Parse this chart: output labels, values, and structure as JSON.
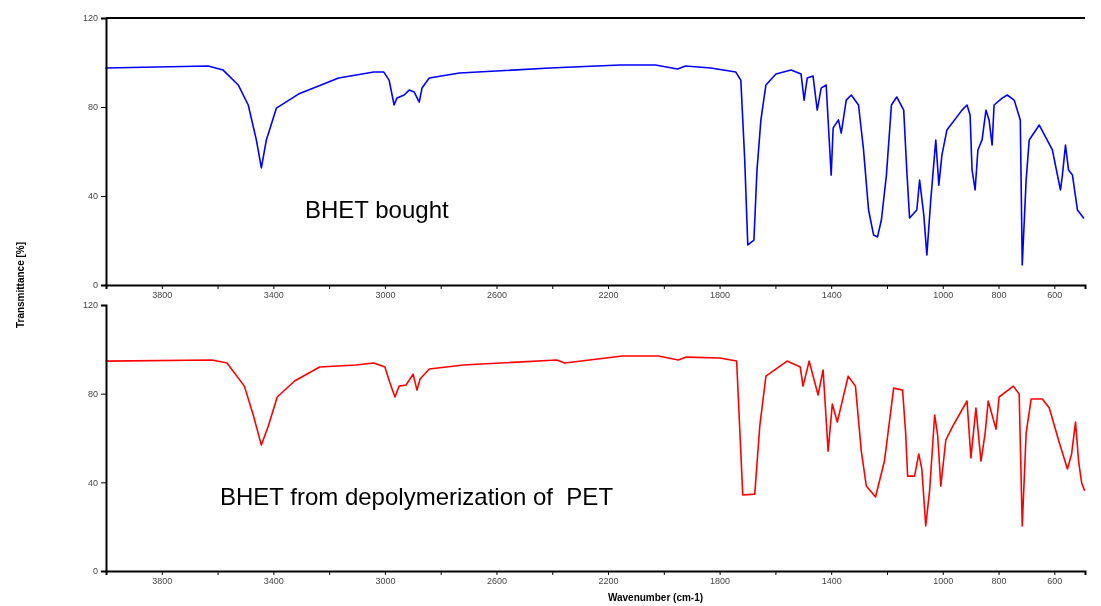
{
  "chart_data": [
    {
      "type": "line",
      "ylabel": "Transmittance [%]",
      "annotations": [
        "BHET bought"
      ],
      "xlim": [
        4000,
        490
      ],
      "ylim": [
        0,
        120
      ],
      "yticks": [
        0,
        40,
        80,
        120
      ],
      "xticks": [
        3800,
        {
          "value": 3600,
          "label": null
        },
        3400,
        {
          "value": 3200,
          "label": null
        },
        3000,
        {
          "value": 2800,
          "label": null
        },
        2600,
        {
          "value": 2400,
          "label": null
        },
        2200,
        {
          "value": 2000,
          "label": null
        },
        1800,
        {
          "value": 1600,
          "label": null
        },
        1400,
        {
          "value": 1200,
          "label": null
        },
        1000,
        800,
        600
      ],
      "grid": false,
      "marker": "none",
      "line_style": "solid",
      "series": [
        {
          "color": "#0000ff",
          "x": [
            4000,
            3634,
            3580,
            3526,
            3490,
            3461,
            3443,
            3425,
            3389,
            3310,
            3166,
            3040,
            3004,
            2985,
            2967,
            2957,
            2931,
            2913,
            2895,
            2877,
            2867,
            2841,
            2733,
            2409,
            2157,
            2030,
            1951,
            1922,
            1832,
            1742,
            1724,
            1710,
            1699,
            1677,
            1666,
            1652,
            1634,
            1598,
            1544,
            1508,
            1497,
            1486,
            1465,
            1450,
            1436,
            1418,
            1407,
            1400,
            1393,
            1374,
            1364,
            1346,
            1328,
            1302,
            1284,
            1266,
            1248,
            1234,
            1220,
            1202,
            1184,
            1165,
            1140,
            1129,
            1119,
            1093,
            1083,
            1068,
            1057,
            1043,
            1025,
            1014,
            1003,
            985,
            931,
            913,
            902,
            895,
            884,
            874,
            859,
            845,
            834,
            823,
            816,
            787,
            769,
            744,
            722,
            715,
            701,
            690,
            654,
            607,
            578,
            571,
            560,
            549,
            535,
            517,
            495
          ],
          "values": [
            97.5,
            98.4,
            96.6,
            89.9,
            80.9,
            65.2,
            52.6,
            65.2,
            79.5,
            85.8,
            93.0,
            95.7,
            95.7,
            92.1,
            80.9,
            84.0,
            85.4,
            87.6,
            86.7,
            82.2,
            88.5,
            93.0,
            95.3,
            97.5,
            98.9,
            98.9,
            97.1,
            98.4,
            97.5,
            95.7,
            92.1,
            56.2,
            18.0,
            20.2,
            51.7,
            74.2,
            89.9,
            94.8,
            96.6,
            94.8,
            83.1,
            93.0,
            93.9,
            78.6,
            88.5,
            89.9,
            65.2,
            49.4,
            70.6,
            74.2,
            68.3,
            83.1,
            85.4,
            80.9,
            60.7,
            33.7,
            22.5,
            21.6,
            29.2,
            49.4,
            80.9,
            84.5,
            78.6,
            51.7,
            30.1,
            33.7,
            47.2,
            31.5,
            13.5,
            38.2,
            65.2,
            44.9,
            58.4,
            69.7,
            78.6,
            80.9,
            76.4,
            51.7,
            42.7,
            60.7,
            65.2,
            78.6,
            74.2,
            62.9,
            80.9,
            84.0,
            85.4,
            83.1,
            74.2,
            9.0,
            47.2,
            65.2,
            71.9,
            60.7,
            42.7,
            49.4,
            62.9,
            51.7,
            49.4,
            33.7,
            30.1
          ]
        }
      ]
    },
    {
      "type": "line",
      "xlabel": "Wavenumber (cm-1)",
      "annotations": [
        "BHET from depolymerization of  PET"
      ],
      "xlim": [
        4000,
        490
      ],
      "ylim": [
        0,
        120
      ],
      "yticks": [
        0,
        40,
        80,
        120
      ],
      "xticks": [
        3800,
        {
          "value": 3600,
          "label": null
        },
        3400,
        {
          "value": 3200,
          "label": null
        },
        3000,
        {
          "value": 2800,
          "label": null
        },
        2600,
        {
          "value": 2400,
          "label": null
        },
        2200,
        {
          "value": 2000,
          "label": null
        },
        1800,
        {
          "value": 1600,
          "label": null
        },
        1400,
        {
          "value": 1200,
          "label": null
        },
        1000,
        800,
        600
      ],
      "grid": false,
      "marker": "none",
      "line_style": "solid",
      "series": [
        {
          "color": "#ff0000",
          "x": [
            4000,
            3620,
            3566,
            3504,
            3472,
            3443,
            3418,
            3386,
            3324,
            3234,
            3104,
            3040,
            3000,
            2982,
            2964,
            2949,
            2924,
            2899,
            2885,
            2874,
            2841,
            2719,
            2384,
            2355,
            2149,
            2020,
            1948,
            1919,
            1800,
            1739,
            1717,
            1674,
            1656,
            1634,
            1558,
            1511,
            1501,
            1479,
            1447,
            1429,
            1411,
            1396,
            1378,
            1339,
            1313,
            1292,
            1274,
            1241,
            1209,
            1176,
            1144,
            1133,
            1126,
            1101,
            1086,
            1075,
            1061,
            1047,
            1029,
            1018,
            1007,
            989,
            964,
            913,
            899,
            881,
            863,
            848,
            837,
            809,
            798,
            747,
            726,
            715,
            701,
            683,
            643,
            618,
            585,
            553,
            538,
            524,
            513,
            502,
            492
          ],
          "values": [
            94.7,
            95.2,
            93.8,
            83.4,
            70.4,
            56.8,
            65.4,
            78.5,
            85.7,
            92.0,
            92.9,
            93.8,
            92.0,
            84.8,
            78.5,
            83.4,
            83.9,
            88.8,
            81.6,
            86.6,
            91.1,
            92.9,
            95.2,
            93.8,
            97.0,
            97.0,
            95.2,
            96.5,
            96.1,
            94.7,
            34.3,
            34.7,
            65.4,
            87.9,
            94.7,
            92.0,
            83.4,
            94.7,
            79.4,
            90.7,
            54.1,
            75.3,
            67.2,
            87.9,
            83.4,
            54.1,
            38.3,
            33.4,
            49.6,
            82.5,
            81.6,
            62.2,
            42.8,
            42.8,
            52.8,
            46.0,
            20.3,
            36.5,
            70.4,
            60.9,
            38.3,
            59.1,
            65.4,
            76.7,
            51.0,
            73.5,
            49.6,
            62.2,
            76.7,
            64.0,
            78.5,
            83.4,
            79.8,
            20.3,
            62.2,
            77.6,
            77.6,
            73.5,
            59.1,
            46.0,
            52.8,
            67.2,
            49.6,
            39.7,
            36.5
          ]
        }
      ]
    }
  ]
}
